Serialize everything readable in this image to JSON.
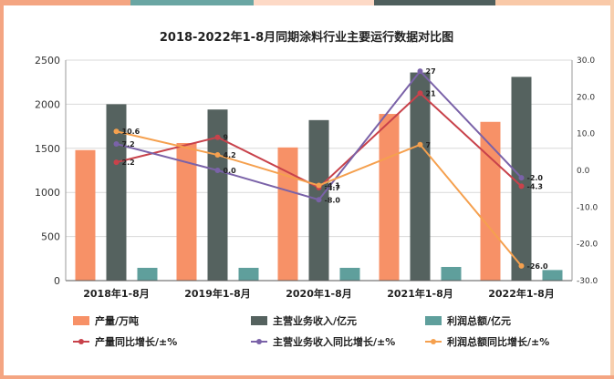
{
  "colors": {
    "top_strip": [
      "#f4a582",
      "#6aa6a3",
      "#fdd9c6",
      "#4f5f5d",
      "#f9c9a8"
    ],
    "frame_left": "#f4a582",
    "frame_right": "#f8cfae",
    "frame_bottom": "#f4a582"
  },
  "chart_data": {
    "type": "bar",
    "title": "2018-2022年1-8月同期涂料行业主要运行数据对比图",
    "categories": [
      "2018年1-8月",
      "2019年1-8月",
      "2020年1-8月",
      "2021年1-8月",
      "2022年1-8月"
    ],
    "left_axis": {
      "ylim": [
        0,
        2500
      ],
      "ticks": [
        "0",
        "500",
        "1000",
        "1500",
        "2000",
        "2500"
      ]
    },
    "right_axis": {
      "ylim": [
        -30,
        30
      ],
      "ticks": [
        "-30.0",
        "-20.0",
        "-10.0",
        "0.0",
        "10.0",
        "20.0",
        "30.0"
      ]
    },
    "bar_series": [
      {
        "name": "产量/万吨",
        "color": "#f79167",
        "values": [
          1480,
          1560,
          1510,
          1890,
          1800
        ]
      },
      {
        "name": "主营业务收入/亿元",
        "color": "#55625f",
        "values": [
          2000,
          1940,
          1820,
          2360,
          2310
        ]
      },
      {
        "name": "利润总额/亿元",
        "color": "#5f9f9c",
        "values": [
          145,
          145,
          145,
          155,
          120
        ]
      }
    ],
    "line_series": [
      {
        "name": "产量同比增长/±%",
        "color": "#c8424b",
        "values": [
          2.2,
          9,
          -4.7,
          21,
          -4.3
        ],
        "labels": [
          "2.2",
          "9",
          "-4.7",
          "21",
          "-4.3"
        ]
      },
      {
        "name": "主营业务收入同比增长/±%",
        "color": "#7a62a8",
        "values": [
          7.2,
          0.0,
          -8.0,
          27,
          -2.0
        ],
        "labels": [
          "7.2",
          "0.0",
          "-8.0",
          "27",
          "-2.0"
        ]
      },
      {
        "name": "利润总额同比增长/±%",
        "color": "#f5a04e",
        "values": [
          10.6,
          4.2,
          -4.1,
          7,
          -26.0
        ],
        "labels": [
          "10.6",
          "4.2",
          "-4.1",
          "7",
          "-26.0"
        ]
      }
    ],
    "grid": true,
    "legend_position": "bottom"
  }
}
